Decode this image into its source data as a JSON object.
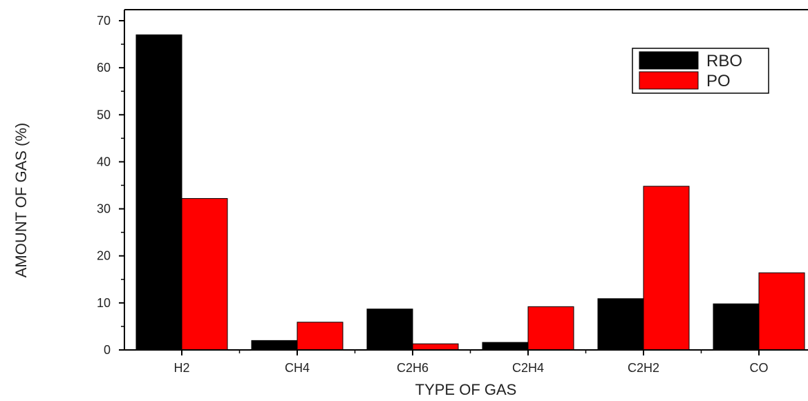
{
  "chart_data": {
    "type": "bar",
    "categories": [
      "H2",
      "CH4",
      "C2H6",
      "C2H4",
      "C2H2",
      "CO"
    ],
    "series": [
      {
        "name": "RBO",
        "color": "#000000",
        "values": [
          67.0,
          2.0,
          8.7,
          1.6,
          10.9,
          9.8
        ]
      },
      {
        "name": "PO",
        "color": "#ff0000",
        "values": [
          32.2,
          5.9,
          1.3,
          9.2,
          34.8,
          16.4
        ]
      }
    ],
    "xlabel": "TYPE OF GAS",
    "ylabel": "AMOUNT OF GAS (%)",
    "ylim": [
      0,
      70
    ],
    "yticks": [
      0,
      10,
      20,
      30,
      40,
      50,
      60,
      70
    ],
    "legend_position": "top-right",
    "grid": false
  }
}
